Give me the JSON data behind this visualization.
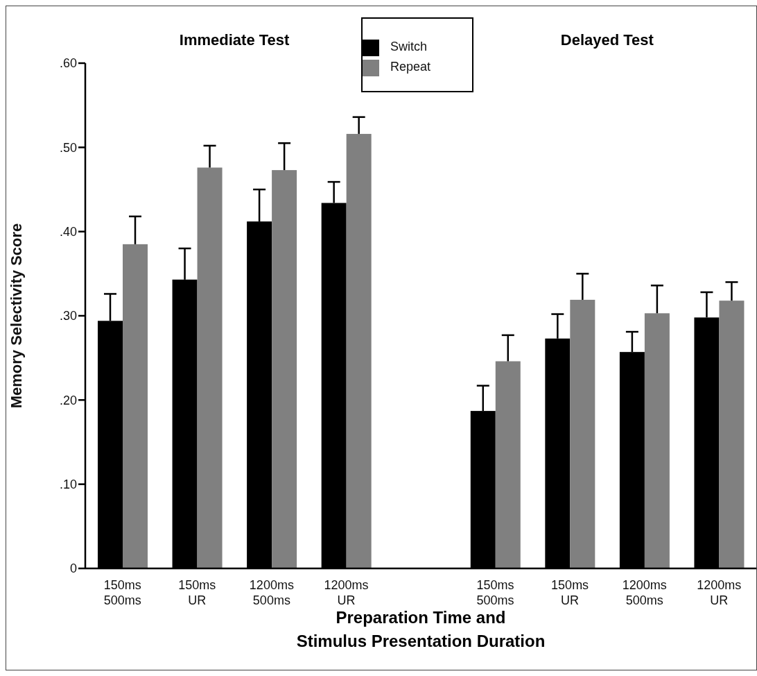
{
  "chart_data": {
    "type": "bar",
    "ylabel": "Memory Selectivity Score",
    "xlabel": "Preparation Time and\nStimulus Presentation Duration",
    "annotations": [
      "Immediate Test",
      "Delayed Test"
    ],
    "categories": [
      "150ms\n500ms",
      "150ms\nUR",
      "1200ms\n500ms",
      "1200ms\nUR",
      null,
      "150ms\n500ms",
      "150ms\nUR",
      "1200ms\n500ms",
      "1200ms\nUR"
    ],
    "series": [
      {
        "name": "Switch",
        "color": "#000000",
        "values": [
          0.294,
          0.343,
          0.412,
          0.434,
          null,
          0.187,
          0.273,
          0.257,
          0.298
        ],
        "errors": [
          [
            0.294,
            0.326
          ],
          [
            0.343,
            0.38
          ],
          [
            0.412,
            0.45
          ],
          [
            0.434,
            0.459
          ],
          null,
          [
            0.187,
            0.217
          ],
          [
            0.273,
            0.302
          ],
          [
            0.257,
            0.281
          ],
          [
            0.298,
            0.328
          ]
        ]
      },
      {
        "name": "Repeat",
        "color": "#808080",
        "values": [
          0.385,
          0.476,
          0.473,
          0.516,
          null,
          0.246,
          0.319,
          0.303,
          0.318
        ],
        "errors": [
          [
            0.385,
            0.418
          ],
          [
            0.476,
            0.502
          ],
          [
            0.473,
            0.505
          ],
          [
            0.516,
            0.536
          ],
          null,
          [
            0.246,
            0.277
          ],
          [
            0.319,
            0.35
          ],
          [
            0.303,
            0.336
          ],
          [
            0.318,
            0.34
          ]
        ]
      }
    ],
    "ylim": [
      0,
      0.6
    ],
    "yticks": [
      0,
      {
        "value": 0.1,
        "label": ".10"
      },
      {
        "value": 0.2,
        "label": ".20"
      },
      {
        "value": 0.3,
        "label": ".30"
      },
      {
        "value": 0.4,
        "label": ".40"
      },
      {
        "value": 0.5,
        "label": ".50"
      },
      {
        "value": 0.6,
        "label": ".60"
      }
    ],
    "grid": false,
    "legend": "top"
  }
}
